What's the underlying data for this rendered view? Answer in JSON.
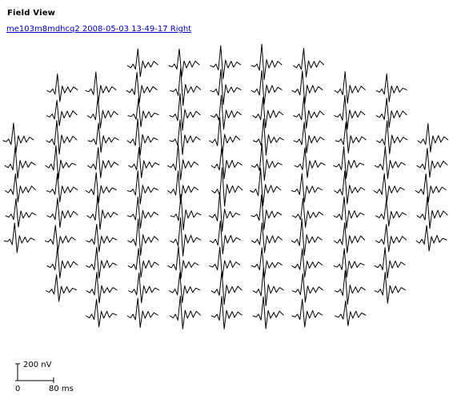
{
  "page": {
    "heading": "Field View",
    "record_link": "me103m8mdhcq2 2008-05-03 13-49-17 Right",
    "colors": {
      "trace": "#000000",
      "link": "#0000cc",
      "background": "#ffffff"
    }
  },
  "chart_data": {
    "type": "line",
    "layout": "mfERG trace array (hexagonal field)",
    "scale_bar": {
      "amplitude_label": "200 nV",
      "time_start_label": "0",
      "time_end_label": "80 ms",
      "amplitude_nV": 200,
      "duration_ms": 80
    },
    "row_counts": [
      5,
      9,
      9,
      11,
      11,
      11,
      11,
      11,
      9,
      9,
      7
    ]
  }
}
